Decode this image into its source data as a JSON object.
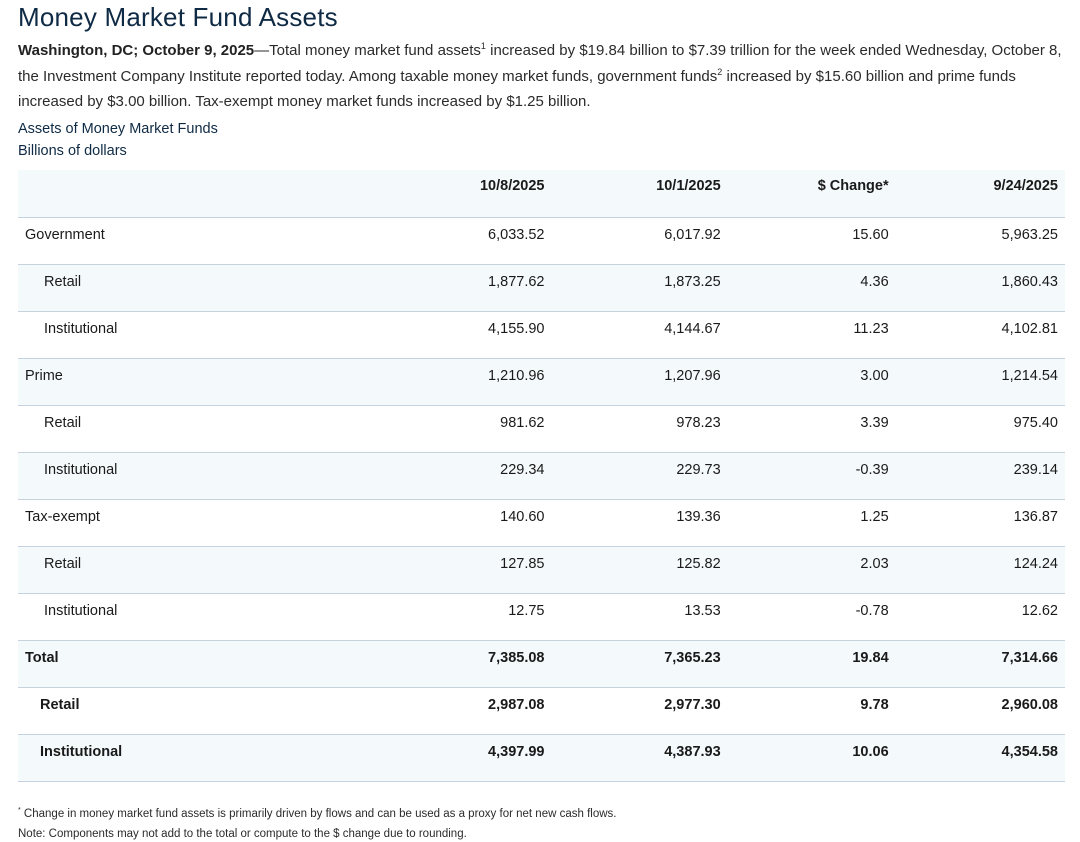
{
  "title": "Money Market Fund Assets",
  "lede": {
    "dateline": "Washington, DC; October 9, 2025",
    "text1": "—Total money market fund assets",
    "sup1": "1",
    "text2": " increased by $19.84 billion to $7.39 trillion for the week ended Wednesday, October 8, the Investment Company Institute reported today. Among taxable money market funds, government funds",
    "sup2": "2",
    "text3": " increased by $15.60 billion and prime funds increased by $3.00 billion. Tax-exempt money market funds increased by $1.25 billion."
  },
  "table_caption": "Assets of Money Market Funds",
  "table_units": "Billions of dollars",
  "table": {
    "headers": [
      "",
      "10/8/2025",
      "10/1/2025",
      "$ Change*",
      "9/24/2025"
    ],
    "rows": [
      {
        "label": "Government",
        "sub": false,
        "bold": false,
        "values": [
          "6,033.52",
          "6,017.92",
          "15.60",
          "5,963.25"
        ]
      },
      {
        "label": "Retail",
        "sub": true,
        "bold": false,
        "values": [
          "1,877.62",
          "1,873.25",
          "4.36",
          "1,860.43"
        ]
      },
      {
        "label": "Institutional",
        "sub": true,
        "bold": false,
        "values": [
          "4,155.90",
          "4,144.67",
          "11.23",
          "4,102.81"
        ]
      },
      {
        "label": "Prime",
        "sub": false,
        "bold": false,
        "values": [
          "1,210.96",
          "1,207.96",
          "3.00",
          "1,214.54"
        ]
      },
      {
        "label": "Retail",
        "sub": true,
        "bold": false,
        "values": [
          "981.62",
          "978.23",
          "3.39",
          "975.40"
        ]
      },
      {
        "label": "Institutional",
        "sub": true,
        "bold": false,
        "values": [
          "229.34",
          "229.73",
          "-0.39",
          "239.14"
        ]
      },
      {
        "label": "Tax-exempt",
        "sub": false,
        "bold": false,
        "values": [
          "140.60",
          "139.36",
          "1.25",
          "136.87"
        ]
      },
      {
        "label": "Retail",
        "sub": true,
        "bold": false,
        "values": [
          "127.85",
          "125.82",
          "2.03",
          "124.24"
        ]
      },
      {
        "label": "Institutional",
        "sub": true,
        "bold": false,
        "values": [
          "12.75",
          "13.53",
          "-0.78",
          "12.62"
        ]
      },
      {
        "label": "Total",
        "sub": false,
        "bold": true,
        "values": [
          "7,385.08",
          "7,365.23",
          "19.84",
          "7,314.66"
        ]
      },
      {
        "label": "Retail",
        "sub": true,
        "bold": true,
        "values": [
          "2,987.08",
          "2,977.30",
          "9.78",
          "2,960.08"
        ]
      },
      {
        "label": "Institutional",
        "sub": true,
        "bold": true,
        "values": [
          "4,397.99",
          "4,387.93",
          "10.06",
          "4,354.58"
        ]
      }
    ]
  },
  "footnotes": {
    "star_mark": "*",
    "star": " Change in money market fund assets is primarily driven by flows and can be used as a proxy for net new cash flows.",
    "note": "Note: Components may not add to the total or compute to the $ change due to rounding."
  },
  "colors": {
    "title": "#0f2a44",
    "row_shade": "#f4f9fc",
    "row_border": "#c6d2dd"
  }
}
